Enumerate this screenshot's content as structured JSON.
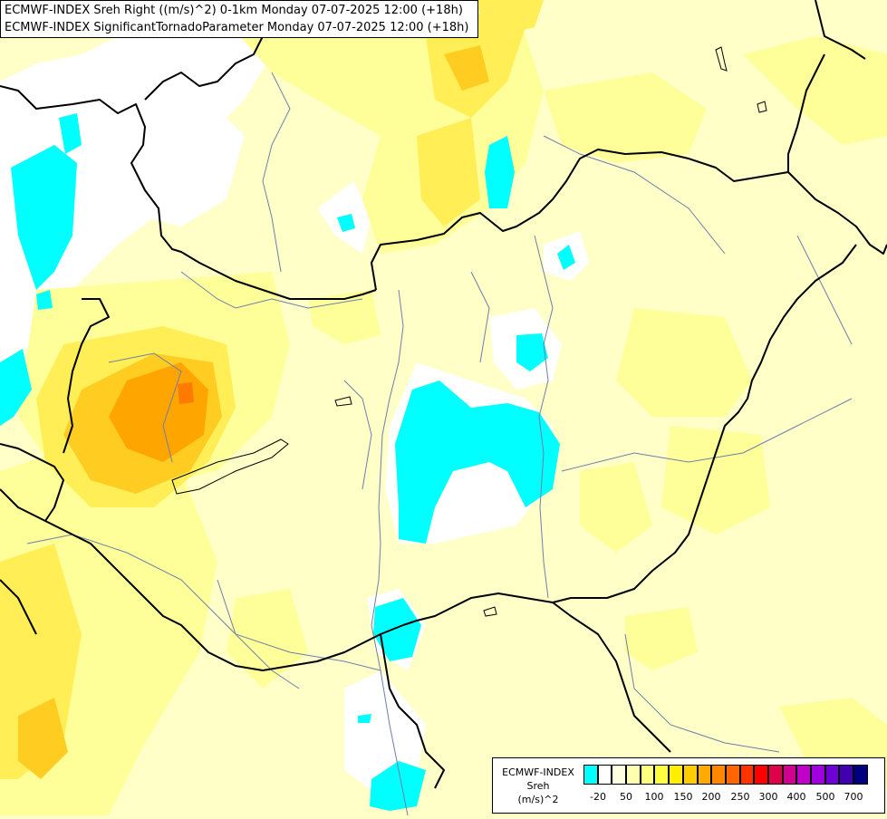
{
  "header": {
    "line1": "ECMWF-INDEX Sreh Right ((m/s)^2) 0-1km Monday 07-07-2025 12:00 (+18h)",
    "line2": "ECMWF-INDEX SignificantTornadoParameter Monday 07-07-2025 12:00 (+18h)"
  },
  "legend": {
    "line1": "ECMWF-INDEX",
    "line2": "Sreh",
    "line3": "(m/s)^2",
    "colors": [
      "#00ffff",
      "#ffffff",
      "#ffffe0",
      "#ffffb0",
      "#ffff80",
      "#ffff40",
      "#ffee00",
      "#ffcc00",
      "#ffaa00",
      "#ff8800",
      "#ff6600",
      "#ff3300",
      "#ff0000",
      "#e0004a",
      "#d00090",
      "#c000c8",
      "#a000e0",
      "#7000d8",
      "#4000b0",
      "#000080"
    ],
    "ticks": [
      "-20",
      "50",
      "100",
      "150",
      "200",
      "250",
      "300",
      "400",
      "500",
      "700"
    ]
  },
  "map": {
    "colors": {
      "base": "#ffffc8",
      "light_yellow": "#ffff9a",
      "yellow": "#ffee55",
      "gold": "#ffcc22",
      "orange": "#ffa500",
      "dark_orange": "#ff7a00",
      "white": "#ffffff",
      "cyan": "#00ffff",
      "border": "#000000",
      "river": "#6f7fa8"
    }
  }
}
